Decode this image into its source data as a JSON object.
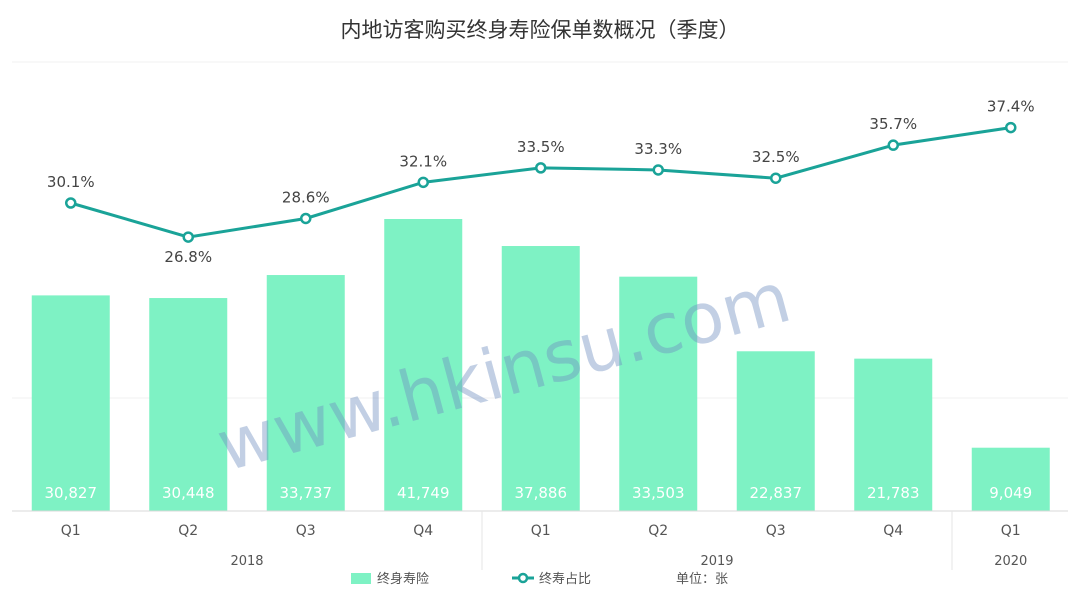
{
  "chart_data": {
    "type": "bar",
    "title": "内地访客购买终身寿险保单数概况（季度）",
    "categories": [
      "Q1",
      "Q2",
      "Q3",
      "Q4",
      "Q1",
      "Q2",
      "Q3",
      "Q4",
      "Q1"
    ],
    "years": [
      {
        "label": "2018",
        "quarters": 4
      },
      {
        "label": "2019",
        "quarters": 4
      },
      {
        "label": "2020",
        "quarters": 1
      }
    ],
    "series": [
      {
        "name": "终身寿险",
        "type": "bar",
        "values": [
          30827,
          30448,
          33737,
          41749,
          37886,
          33503,
          22837,
          21783,
          9049
        ],
        "labels": [
          "30,827",
          "30,448",
          "33,737",
          "41,749",
          "37,886",
          "33,503",
          "22,837",
          "21,783",
          "9,049"
        ],
        "color": "#7ef2c4"
      },
      {
        "name": "终寿占比",
        "type": "line",
        "values": [
          30.1,
          26.8,
          28.6,
          32.1,
          33.5,
          33.3,
          32.5,
          35.7,
          37.4
        ],
        "labels": [
          "30.1%",
          "26.8%",
          "28.6%",
          "32.1%",
          "33.5%",
          "33.3%",
          "32.5%",
          "35.7%",
          "37.4%"
        ],
        "color": "#1aa398"
      }
    ],
    "legend_position": "bottom",
    "legend_note": "单位：张",
    "watermark": "www.hkinsu.com"
  }
}
